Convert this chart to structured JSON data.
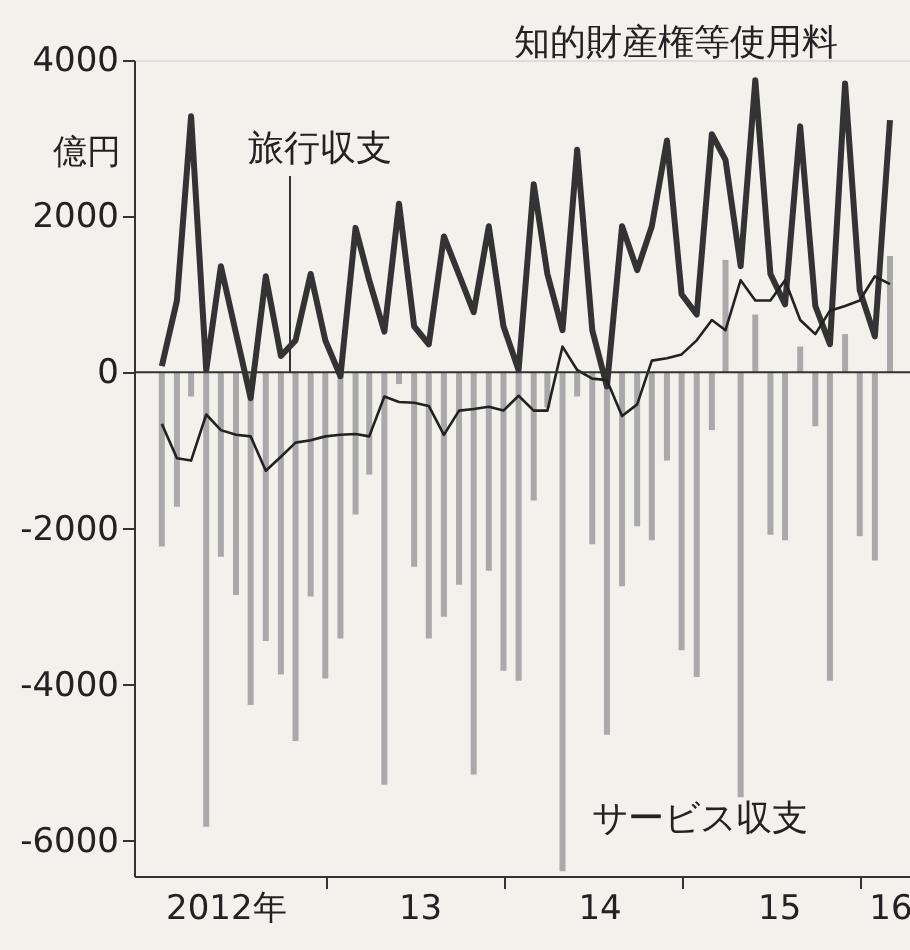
{
  "chart_data": {
    "type": "bar",
    "ylabel": "億円",
    "x": [
      "2012-01",
      "2012-02",
      "2012-03",
      "2012-04",
      "2012-05",
      "2012-06",
      "2012-07",
      "2012-08",
      "2012-09",
      "2012-10",
      "2012-11",
      "2012-12",
      "2013-01",
      "2013-02",
      "2013-03",
      "2013-04",
      "2013-05",
      "2013-06",
      "2013-07",
      "2013-08",
      "2013-09",
      "2013-10",
      "2013-11",
      "2013-12",
      "2014-01",
      "2014-02",
      "2014-03",
      "2014-04",
      "2014-05",
      "2014-06",
      "2014-07",
      "2014-08",
      "2014-09",
      "2014-10",
      "2014-11",
      "2014-12",
      "2015-01",
      "2015-02",
      "2015-03",
      "2015-04",
      "2015-05",
      "2015-06",
      "2015-07",
      "2015-08",
      "2015-09",
      "2015-10",
      "2015-11",
      "2015-12",
      "2016-01",
      "2016-02"
    ],
    "xlim": [
      "2011-11-05",
      "2016-03-13"
    ],
    "xticks": [
      {
        "value": "2012-05-10",
        "label": "2012年"
      },
      {
        "value": "2012-12-01",
        "label": null
      },
      {
        "value": "2013-06-12",
        "label": "13"
      },
      {
        "value": "2013-12-01",
        "label": null
      },
      {
        "value": "2014-06-15",
        "label": "14"
      },
      {
        "value": "2014-12-01",
        "label": null
      },
      {
        "value": "2015-06-18",
        "label": "15"
      },
      {
        "value": "2015-12-01",
        "label": null
      },
      {
        "value": "2016-02-01",
        "label": "16"
      }
    ],
    "ylim": [
      -6450,
      4000
    ],
    "yticks": [
      4000,
      2000,
      0,
      -2000,
      -4000,
      -6000
    ],
    "series": [
      {
        "name": "サービス収支",
        "type": "bar",
        "color": "#a9a9a9",
        "values": [
          -2230,
          -1720,
          -310,
          -5820,
          -2360,
          -2850,
          -4260,
          -3440,
          -3870,
          -4720,
          -2870,
          -3920,
          -3410,
          -1820,
          -1310,
          -5280,
          -150,
          -2490,
          -3410,
          -3130,
          -2720,
          -5150,
          -2540,
          -3820,
          -3950,
          -1640,
          -450,
          -6390,
          -310,
          -2200,
          -4640,
          -2740,
          -1970,
          -2150,
          -1130,
          -3560,
          -3900,
          -740,
          1440,
          -5440,
          740,
          -2080,
          -2150,
          330,
          -690,
          -3950,
          490,
          -2100,
          -2410,
          1490
        ]
      },
      {
        "name": "知的財産権等使用料",
        "type": "line",
        "color": "#333333",
        "values": [
          80,
          920,
          3280,
          30,
          1360,
          500,
          -330,
          1230,
          210,
          410,
          1260,
          410,
          -50,
          1850,
          1180,
          520,
          2160,
          590,
          360,
          1740,
          1250,
          770,
          1870,
          590,
          30,
          2410,
          1260,
          540,
          2850,
          540,
          -180,
          1870,
          1310,
          1870,
          2970,
          1000,
          740,
          3050,
          2720,
          1360,
          3740,
          1260,
          870,
          3150,
          850,
          360,
          3700,
          1050,
          460,
          3230
        ]
      },
      {
        "name": "旅行収支",
        "type": "line",
        "color": "#222222",
        "values": [
          -660,
          -1100,
          -1130,
          -540,
          -740,
          -800,
          -820,
          -1260,
          -1080,
          -900,
          -870,
          -820,
          -800,
          -790,
          -820,
          -310,
          -380,
          -390,
          -430,
          -800,
          -490,
          -470,
          -440,
          -490,
          -300,
          -490,
          -490,
          330,
          30,
          -80,
          -100,
          -560,
          -410,
          150,
          180,
          230,
          410,
          670,
          540,
          1180,
          920,
          920,
          1180,
          670,
          490,
          790,
          850,
          920,
          1230,
          1130
        ]
      }
    ],
    "ref_lines": [
      {
        "axis": "y",
        "value": 0,
        "color": "#333333"
      }
    ]
  }
}
